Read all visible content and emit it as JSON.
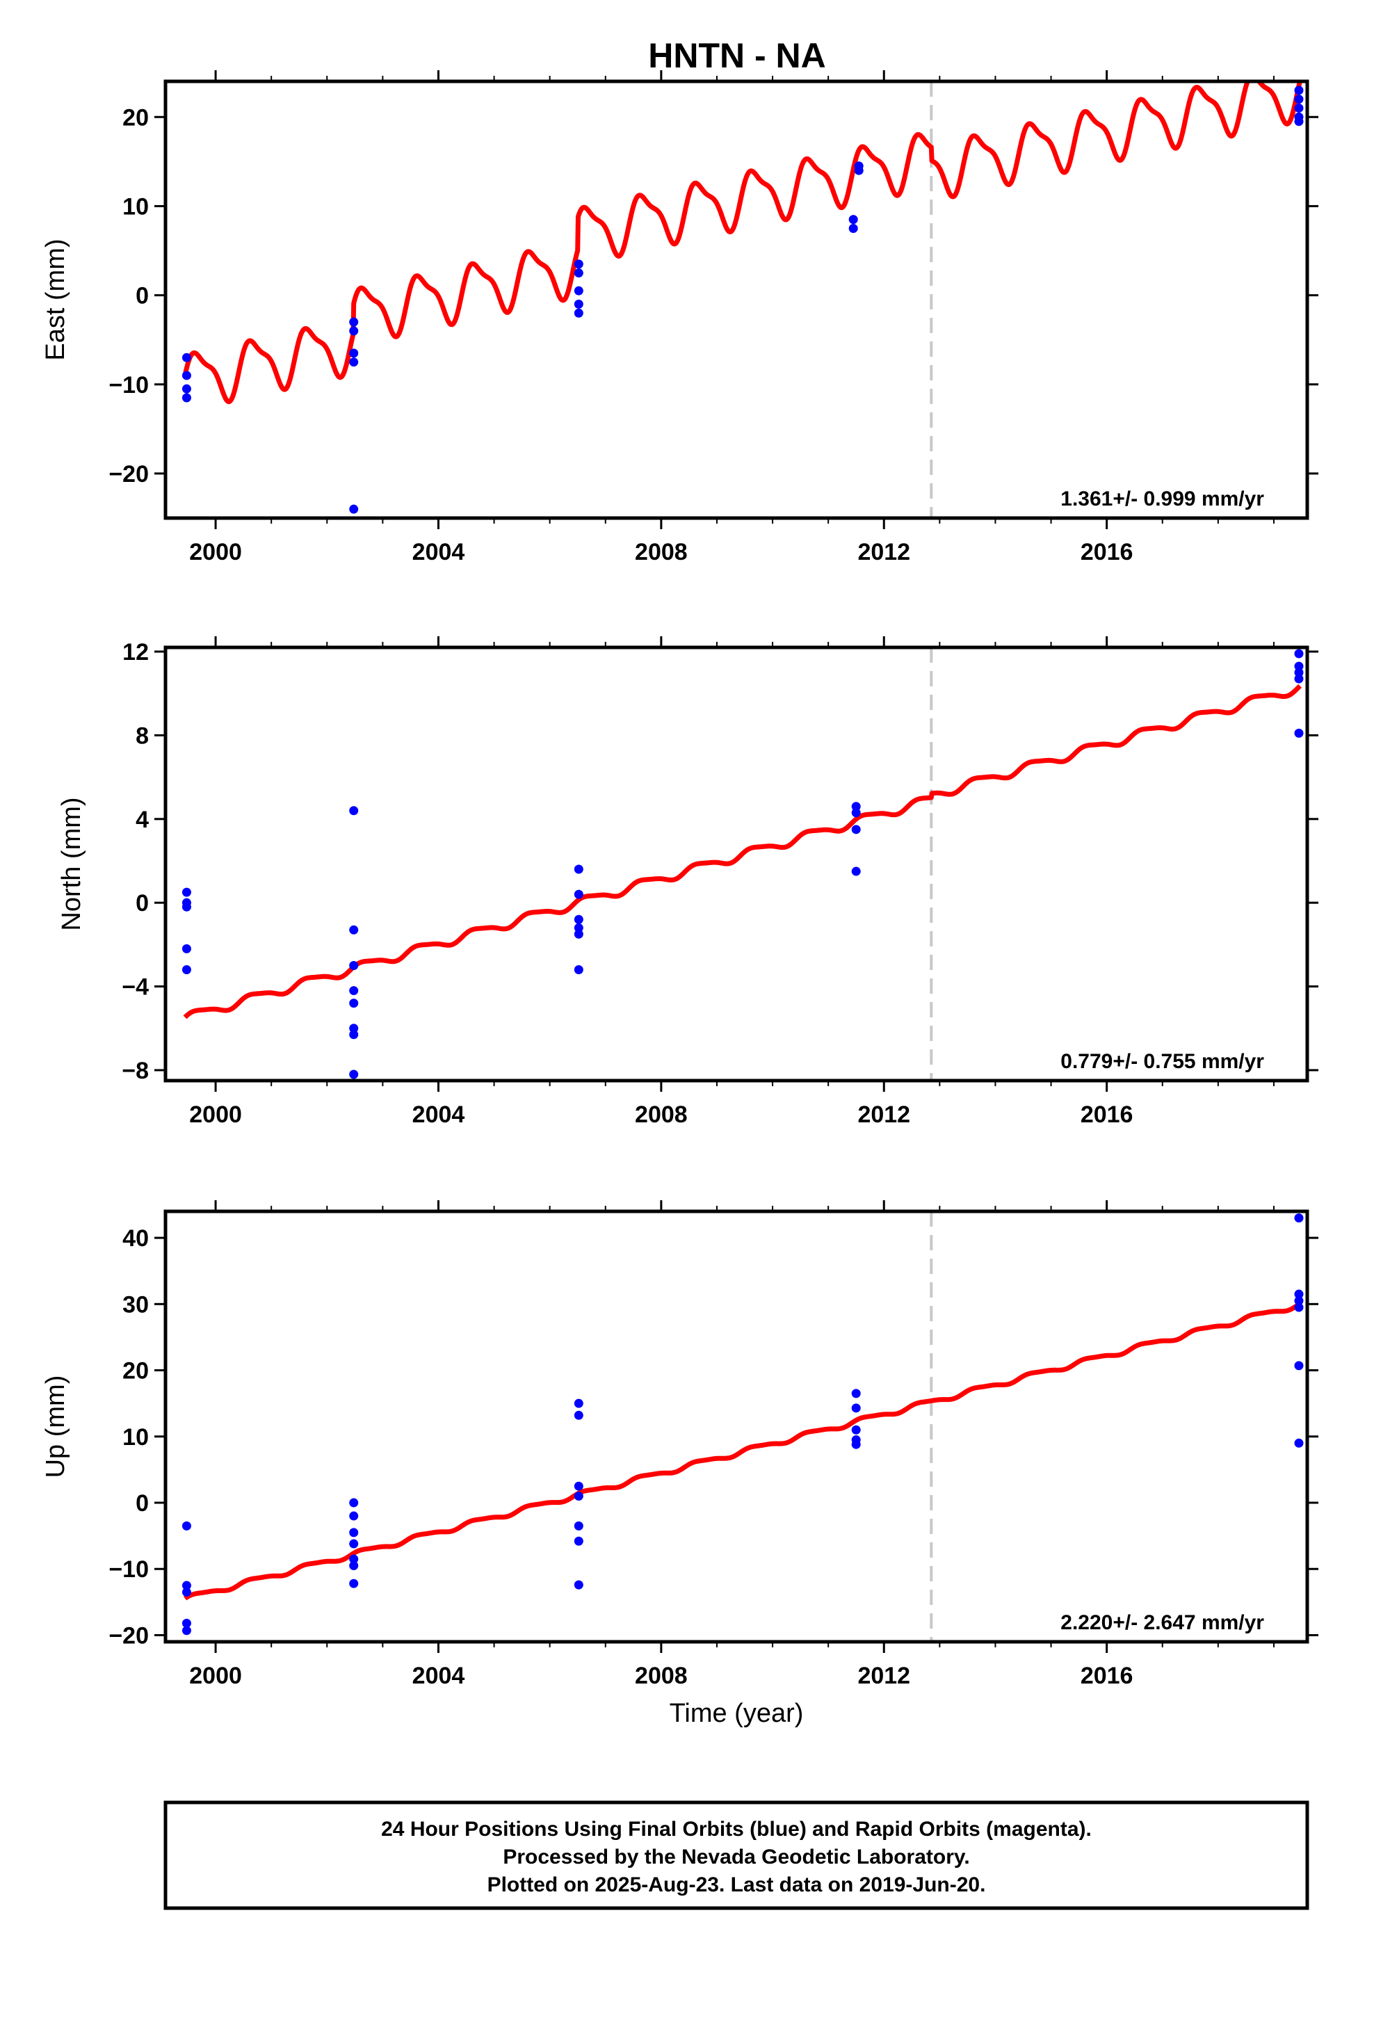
{
  "title": "HNTN - NA",
  "colors": {
    "model": "#ff0000",
    "final_orbits": "#0000ff",
    "equipment_change": "#c8c8c8",
    "frame": "#000000"
  },
  "chart_data": [
    {
      "type": "scatter",
      "component": "East",
      "ylabel": "East (mm)",
      "xlim": [
        1999.1,
        2019.6
      ],
      "ylim": [
        -25,
        24
      ],
      "xticks": [
        2000,
        2004,
        2008,
        2012,
        2016
      ],
      "xtick_labels": [
        "2000",
        "2004",
        "2008",
        "2012",
        "2016"
      ],
      "yticks": [
        -20,
        -10,
        0,
        10,
        20
      ],
      "ytick_labels": [
        "−20",
        "−10",
        "0",
        "10",
        "20"
      ],
      "equipment_change_x": 2012.85,
      "rate_label": "1.361+/- 0.999 mm/yr",
      "model": {
        "rate": 1.361,
        "start_x": 1999.45,
        "start_y": -9.5,
        "end_x": 2019.47,
        "annual_amplitude": 2.8,
        "semiannual_amplitude": 0.9,
        "offsets": [
          {
            "x": 2002.47,
            "value": 3.2
          },
          {
            "x": 2006.5,
            "value": 3.6
          },
          {
            "x": 2012.85,
            "value": -1.5
          }
        ]
      },
      "points": [
        {
          "x": 1999.48,
          "y": -7.0
        },
        {
          "x": 1999.48,
          "y": -9.0
        },
        {
          "x": 1999.48,
          "y": -10.5
        },
        {
          "x": 1999.48,
          "y": -11.5
        },
        {
          "x": 2002.48,
          "y": -3.0
        },
        {
          "x": 2002.48,
          "y": -4.0
        },
        {
          "x": 2002.48,
          "y": -6.5
        },
        {
          "x": 2002.48,
          "y": -7.5
        },
        {
          "x": 2002.48,
          "y": -24.0
        },
        {
          "x": 2006.52,
          "y": 3.5
        },
        {
          "x": 2006.52,
          "y": 2.5
        },
        {
          "x": 2006.52,
          "y": 0.5
        },
        {
          "x": 2006.52,
          "y": -1.0
        },
        {
          "x": 2006.52,
          "y": -2.0
        },
        {
          "x": 2011.55,
          "y": 14.5
        },
        {
          "x": 2011.55,
          "y": 14.0
        },
        {
          "x": 2011.45,
          "y": 8.5
        },
        {
          "x": 2011.45,
          "y": 7.5
        },
        {
          "x": 2019.45,
          "y": 23.0
        },
        {
          "x": 2019.45,
          "y": 22.0
        },
        {
          "x": 2019.45,
          "y": 21.0
        },
        {
          "x": 2019.45,
          "y": 20.0
        },
        {
          "x": 2019.45,
          "y": 19.5
        }
      ]
    },
    {
      "type": "scatter",
      "component": "North",
      "ylabel": "North (mm)",
      "xlim": [
        1999.1,
        2019.6
      ],
      "ylim": [
        -8.5,
        12.2
      ],
      "xticks": [
        2000,
        2004,
        2008,
        2012,
        2016
      ],
      "xtick_labels": [
        "2000",
        "2004",
        "2008",
        "2012",
        "2016"
      ],
      "yticks": [
        -8,
        -4,
        0,
        4,
        8,
        12
      ],
      "ytick_labels": [
        "−8",
        "−4",
        "0",
        "4",
        "8",
        "12"
      ],
      "equipment_change_x": 2012.85,
      "rate_label": "0.779+/- 0.755 mm/yr",
      "model": {
        "rate": 0.779,
        "start_x": 1999.45,
        "start_y": -5.5,
        "end_x": 2019.47,
        "annual_amplitude": 0.2,
        "semiannual_amplitude": 0.05,
        "offsets": [
          {
            "x": 2002.47,
            "value": 0.0
          },
          {
            "x": 2006.5,
            "value": 0.0
          },
          {
            "x": 2012.85,
            "value": 0.2
          }
        ]
      },
      "points": [
        {
          "x": 1999.48,
          "y": 0.5
        },
        {
          "x": 1999.48,
          "y": 0.0
        },
        {
          "x": 1999.48,
          "y": -0.2
        },
        {
          "x": 1999.48,
          "y": -2.2
        },
        {
          "x": 1999.48,
          "y": -3.2
        },
        {
          "x": 2002.48,
          "y": 4.4
        },
        {
          "x": 2002.48,
          "y": -1.3
        },
        {
          "x": 2002.48,
          "y": -3.0
        },
        {
          "x": 2002.48,
          "y": -4.2
        },
        {
          "x": 2002.48,
          "y": -4.8
        },
        {
          "x": 2002.48,
          "y": -6.0
        },
        {
          "x": 2002.48,
          "y": -6.3
        },
        {
          "x": 2002.48,
          "y": -8.2
        },
        {
          "x": 2006.52,
          "y": 1.6
        },
        {
          "x": 2006.52,
          "y": 0.4
        },
        {
          "x": 2006.52,
          "y": -0.8
        },
        {
          "x": 2006.52,
          "y": -1.2
        },
        {
          "x": 2006.52,
          "y": -1.5
        },
        {
          "x": 2006.52,
          "y": -3.2
        },
        {
          "x": 2011.5,
          "y": 4.6
        },
        {
          "x": 2011.5,
          "y": 4.3
        },
        {
          "x": 2011.5,
          "y": 3.5
        },
        {
          "x": 2011.5,
          "y": 1.5
        },
        {
          "x": 2019.45,
          "y": 11.9
        },
        {
          "x": 2019.45,
          "y": 11.3
        },
        {
          "x": 2019.45,
          "y": 11.0
        },
        {
          "x": 2019.45,
          "y": 10.7
        },
        {
          "x": 2019.45,
          "y": 8.1
        }
      ]
    },
    {
      "type": "scatter",
      "component": "Up",
      "ylabel": "Up (mm)",
      "xlim": [
        1999.1,
        2019.6
      ],
      "ylim": [
        -21,
        44
      ],
      "xticks": [
        2000,
        2004,
        2008,
        2012,
        2016
      ],
      "xtick_labels": [
        "2000",
        "2004",
        "2008",
        "2012",
        "2016"
      ],
      "yticks": [
        -20,
        -10,
        0,
        10,
        20,
        30,
        40
      ],
      "ytick_labels": [
        "−20",
        "−10",
        "0",
        "10",
        "20",
        "30",
        "40"
      ],
      "xlabel": "Time (year)",
      "equipment_change_x": 2012.85,
      "rate_label": "2.220+/- 2.647 mm/yr",
      "model": {
        "rate": 2.22,
        "start_x": 1999.45,
        "start_y": -14.5,
        "end_x": 2019.47,
        "annual_amplitude": 0.35,
        "semiannual_amplitude": 0.1,
        "offsets": [
          {
            "x": 2002.47,
            "value": 0.0
          },
          {
            "x": 2006.5,
            "value": 0.0
          },
          {
            "x": 2012.85,
            "value": 0.0
          }
        ]
      },
      "points": [
        {
          "x": 1999.48,
          "y": -3.5
        },
        {
          "x": 1999.48,
          "y": -12.5
        },
        {
          "x": 1999.48,
          "y": -13.5
        },
        {
          "x": 1999.48,
          "y": -18.2
        },
        {
          "x": 1999.48,
          "y": -19.3
        },
        {
          "x": 2002.48,
          "y": 0.0
        },
        {
          "x": 2002.48,
          "y": -2.0
        },
        {
          "x": 2002.48,
          "y": -4.5
        },
        {
          "x": 2002.48,
          "y": -6.2
        },
        {
          "x": 2002.48,
          "y": -8.5
        },
        {
          "x": 2002.48,
          "y": -9.5
        },
        {
          "x": 2002.48,
          "y": -12.2
        },
        {
          "x": 2006.52,
          "y": 15.0
        },
        {
          "x": 2006.52,
          "y": 13.2
        },
        {
          "x": 2006.52,
          "y": 2.5
        },
        {
          "x": 2006.52,
          "y": 1.0
        },
        {
          "x": 2006.52,
          "y": -3.5
        },
        {
          "x": 2006.52,
          "y": -5.8
        },
        {
          "x": 2006.52,
          "y": -12.4
        },
        {
          "x": 2011.5,
          "y": 16.5
        },
        {
          "x": 2011.5,
          "y": 14.3
        },
        {
          "x": 2011.5,
          "y": 11.0
        },
        {
          "x": 2011.5,
          "y": 9.5
        },
        {
          "x": 2011.5,
          "y": 8.8
        },
        {
          "x": 2019.45,
          "y": 43.0
        },
        {
          "x": 2019.45,
          "y": 31.5
        },
        {
          "x": 2019.45,
          "y": 30.5
        },
        {
          "x": 2019.45,
          "y": 29.5
        },
        {
          "x": 2019.45,
          "y": 20.7
        },
        {
          "x": 2019.45,
          "y": 9.0
        }
      ]
    }
  ],
  "footer": {
    "lines": [
      "24 Hour Positions Using Final Orbits (blue) and Rapid Orbits (magenta).",
      "Processed by the Nevada Geodetic Laboratory.",
      "Plotted on 2025-Aug-23. Last data on 2019-Jun-20."
    ]
  }
}
